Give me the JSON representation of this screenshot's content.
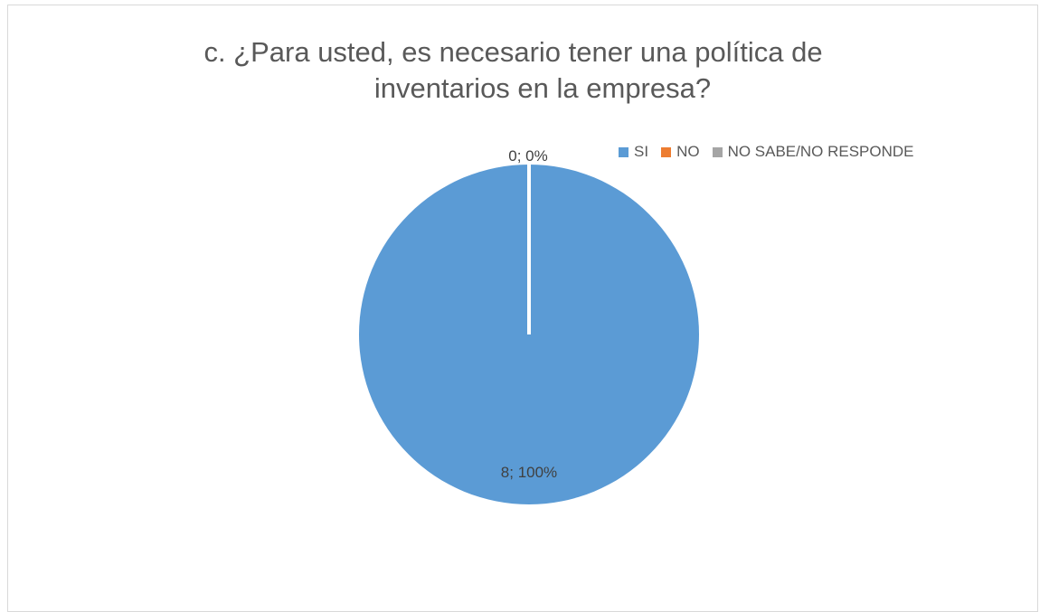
{
  "chart_data": {
    "type": "pie",
    "title_lines": [
      "c.    ¿Para usted, es necesario tener una política de",
      "inventarios en la empresa?"
    ],
    "categories": [
      "SI",
      "NO",
      "NO SABE/NO RESPONDE"
    ],
    "values": [
      8,
      0,
      0
    ],
    "data_labels": [
      "8; 100%",
      "0; 0%",
      ""
    ],
    "colors": [
      "#5b9bd5",
      "#ed7d31",
      "#a5a5a5"
    ],
    "legend_position": "top-right",
    "slice_border_color": "#ffffff"
  }
}
